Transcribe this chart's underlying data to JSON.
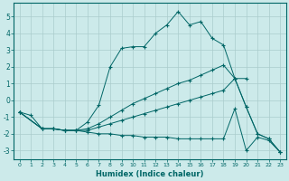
{
  "xlabel": "Humidex (Indice chaleur)",
  "bg_color": "#cceaea",
  "grid_color": "#aacccc",
  "line_color": "#006666",
  "xlim": [
    -0.5,
    23.5
  ],
  "ylim": [
    -3.5,
    5.8
  ],
  "xticks": [
    0,
    1,
    2,
    3,
    4,
    5,
    6,
    7,
    8,
    9,
    10,
    11,
    12,
    13,
    14,
    15,
    16,
    17,
    18,
    19,
    20,
    21,
    22,
    23
  ],
  "yticks": [
    -3,
    -2,
    -1,
    0,
    1,
    2,
    3,
    4,
    5
  ],
  "lines": [
    {
      "x": [
        0,
        1,
        2,
        3,
        4,
        5,
        6,
        7,
        8,
        9,
        10,
        11,
        12,
        13,
        14,
        15,
        16,
        17,
        18,
        19,
        20
      ],
      "y": [
        -0.7,
        -0.9,
        -1.7,
        -1.7,
        -1.8,
        -1.8,
        -1.3,
        -0.3,
        2.0,
        3.1,
        3.2,
        3.2,
        4.0,
        4.5,
        5.3,
        4.5,
        4.7,
        3.7,
        3.3,
        1.3,
        1.3
      ]
    },
    {
      "x": [
        0,
        2,
        3,
        4,
        5,
        6,
        7,
        8,
        9,
        10,
        11,
        12,
        13,
        14,
        15,
        16,
        17,
        18,
        19,
        20,
        21,
        22,
        23
      ],
      "y": [
        -0.7,
        -1.7,
        -1.7,
        -1.8,
        -1.8,
        -1.7,
        -1.4,
        -1.0,
        -0.6,
        -0.2,
        0.1,
        0.4,
        0.7,
        1.0,
        1.2,
        1.5,
        1.8,
        2.1,
        1.3,
        -0.4,
        -2.0,
        -2.3,
        -3.1
      ]
    },
    {
      "x": [
        0,
        2,
        3,
        4,
        5,
        6,
        7,
        8,
        9,
        10,
        11,
        12,
        13,
        14,
        15,
        16,
        17,
        18,
        19,
        20,
        21,
        22,
        23
      ],
      "y": [
        -0.7,
        -1.7,
        -1.7,
        -1.8,
        -1.8,
        -1.8,
        -1.6,
        -1.4,
        -1.2,
        -1.0,
        -0.8,
        -0.6,
        -0.4,
        -0.2,
        0.0,
        0.2,
        0.4,
        0.6,
        1.3,
        -0.4,
        -2.0,
        -2.3,
        -3.1
      ]
    },
    {
      "x": [
        0,
        2,
        3,
        4,
        5,
        6,
        7,
        8,
        9,
        10,
        11,
        12,
        13,
        14,
        15,
        16,
        17,
        18,
        19,
        20,
        21,
        22,
        23
      ],
      "y": [
        -0.7,
        -1.7,
        -1.7,
        -1.8,
        -1.8,
        -1.9,
        -2.0,
        -2.0,
        -2.1,
        -2.1,
        -2.2,
        -2.2,
        -2.2,
        -2.3,
        -2.3,
        -2.3,
        -2.3,
        -2.3,
        -0.5,
        -3.0,
        -2.2,
        -2.4,
        -3.1
      ]
    }
  ]
}
